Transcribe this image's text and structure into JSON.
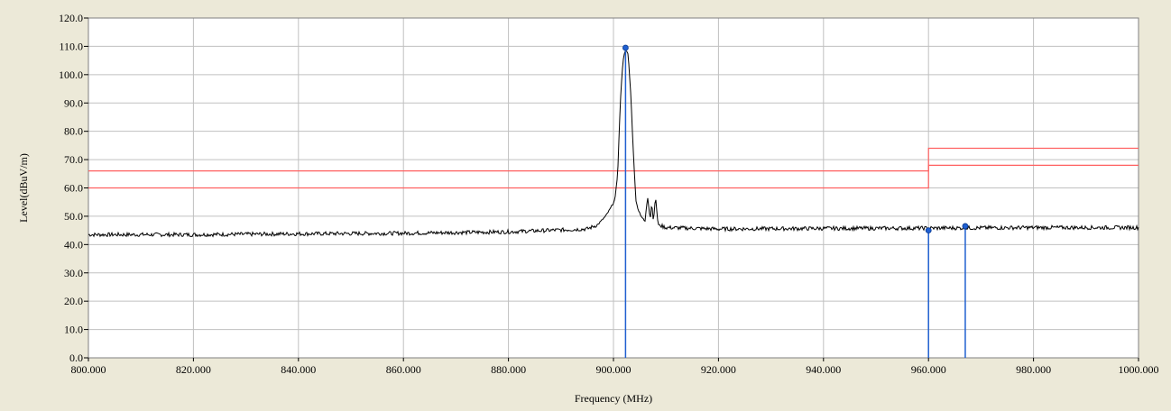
{
  "chart_data": {
    "type": "line",
    "title": "",
    "xlabel": "Frequency (MHz)",
    "ylabel": "Level(dBuV/m)",
    "xlim": [
      800,
      1000
    ],
    "ylim": [
      0,
      120
    ],
    "grid": true,
    "x_ticks": [
      800,
      820,
      840,
      860,
      880,
      900,
      920,
      940,
      960,
      980,
      1000
    ],
    "x_tick_labels": [
      "800.000",
      "820.000",
      "840.000",
      "860.000",
      "880.000",
      "900.000",
      "920.000",
      "940.000",
      "960.000",
      "980.000",
      "1000.000"
    ],
    "y_ticks": [
      0,
      10,
      20,
      30,
      40,
      50,
      60,
      70,
      80,
      90,
      100,
      110,
      120
    ],
    "y_tick_labels": [
      "0.0",
      "10.0",
      "20.0",
      "30.0",
      "40.0",
      "50.0",
      "60.0",
      "70.0",
      "80.0",
      "90.0",
      "100.0",
      "110.0",
      "120.0"
    ],
    "series": [
      {
        "color": "#000000",
        "x": [
          800,
          820,
          840,
          860,
          880,
          895,
          897,
          898.5,
          899.5,
          900.3,
          900.8,
          901.3,
          901.8,
          902.3,
          902.8,
          903.3,
          903.8,
          904.3,
          904.8,
          905.3,
          906,
          906.5,
          907,
          907.3,
          907.6,
          908,
          908.5,
          910,
          920,
          940,
          960,
          980,
          1000
        ],
        "y": [
          43.5,
          43.5,
          43.8,
          44.0,
          44.5,
          45.5,
          47,
          50,
          53,
          56,
          65,
          90,
          105,
          109,
          107,
          93,
          72,
          55,
          52,
          50,
          48,
          57,
          49,
          55,
          48,
          57,
          47,
          46,
          45.5,
          45.7,
          45.8,
          46,
          46
        ]
      }
    ],
    "limit_lines": [
      {
        "color": "#FF6060",
        "x": [
          800,
          960,
          960,
          1000
        ],
        "y": [
          66,
          66,
          74,
          74
        ]
      },
      {
        "color": "#FF6060",
        "x": [
          800,
          960,
          960,
          1000
        ],
        "y": [
          60,
          60,
          68,
          68
        ]
      }
    ],
    "markers": [
      {
        "x": 902.3,
        "y": 109.5
      },
      {
        "x": 960.0,
        "y": 45.0
      },
      {
        "x": 967.0,
        "y": 46.5
      }
    ],
    "colors": {
      "background": "#ECE9D8",
      "plot_area": "#FFFFFF",
      "grid": "#C0C0C0",
      "marker": "#1F5FD0"
    }
  }
}
